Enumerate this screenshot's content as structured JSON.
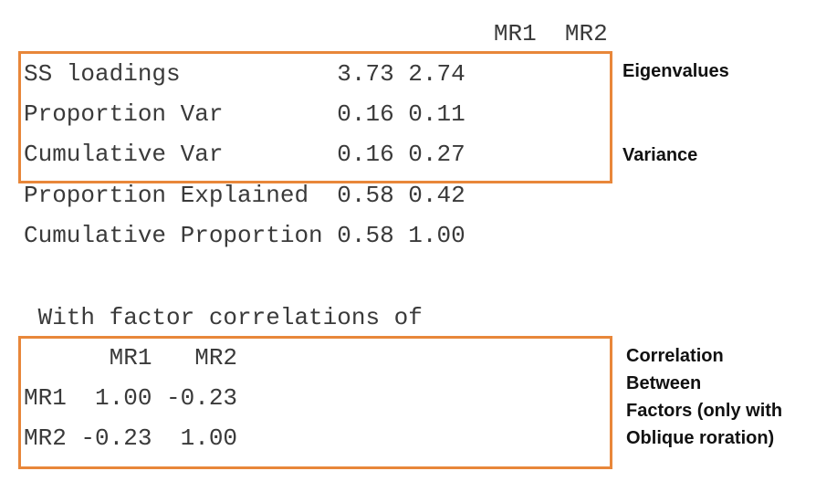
{
  "variance_table": {
    "header": "                                 MR1  MR2",
    "rows": [
      "SS loadings           3.73 2.74",
      "Proportion Var        0.16 0.11",
      "Cumulative Var        0.16 0.27",
      "Proportion Explained  0.58 0.42",
      "Cumulative Proportion 0.58 1.00"
    ]
  },
  "correlations": {
    "heading": " With factor correlations of",
    "header": "      MR1   MR2",
    "rows": [
      "MR1  1.00 -0.23",
      "MR2 -0.23  1.00"
    ]
  },
  "annotations": {
    "eigenvalues": "Eigenvalues",
    "variance": "Variance",
    "correlation": "Correlation\nBetween\nFactors (only with\nOblique roration)"
  },
  "colors": {
    "box_border": "#e8873a",
    "output_text": "#3a3a3a"
  }
}
